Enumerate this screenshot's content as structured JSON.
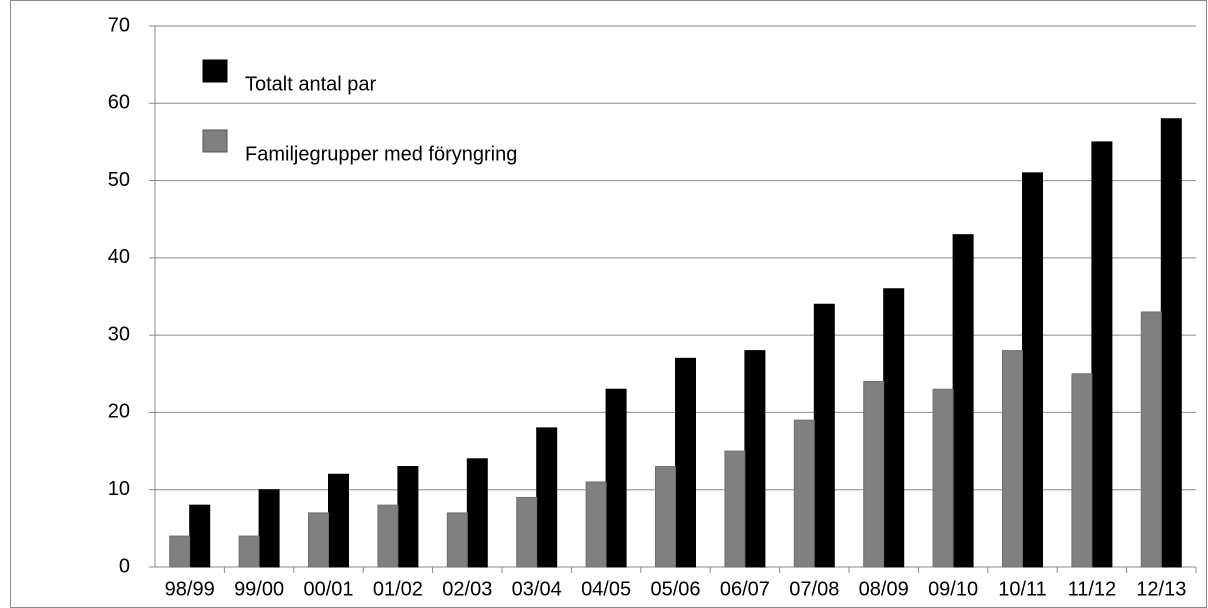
{
  "chart_data": {
    "type": "bar",
    "categories": [
      "98/99",
      "99/00",
      "00/01",
      "01/02",
      "02/03",
      "03/04",
      "04/05",
      "05/06",
      "06/07",
      "07/08",
      "08/09",
      "09/10",
      "10/11",
      "11/12",
      "12/13"
    ],
    "series": [
      {
        "name": "Totalt antal par",
        "color": "#000000",
        "values": [
          8,
          10,
          12,
          13,
          14,
          18,
          23,
          27,
          28,
          34,
          36,
          43,
          51,
          55,
          58
        ]
      },
      {
        "name": "Familjegrupper med föryngring",
        "color": "#808080",
        "values": [
          4,
          4,
          7,
          8,
          7,
          9,
          11,
          13,
          15,
          19,
          24,
          23,
          28,
          25,
          33
        ]
      }
    ],
    "ylim": [
      0,
      70
    ],
    "yticks": [
      0,
      10,
      20,
      30,
      40,
      50,
      60,
      70
    ],
    "grid": true,
    "legend": "top-left"
  }
}
